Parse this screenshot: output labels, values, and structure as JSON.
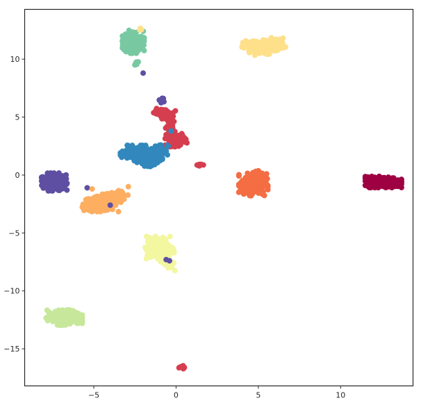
{
  "chart_data": {
    "type": "scatter",
    "title": "",
    "xlabel": "",
    "ylabel": "",
    "xlim": [
      -9.2,
      14.4
    ],
    "ylim": [
      -18.2,
      14.3
    ],
    "xticks": [
      -5,
      0,
      5,
      10
    ],
    "yticks": [
      -15,
      -10,
      -5,
      0,
      5,
      10
    ],
    "xtick_labels": [
      "−5",
      "0",
      "5",
      "10"
    ],
    "ytick_labels": [
      "−15",
      "−10",
      "−5",
      "0",
      "5",
      "10"
    ],
    "grid": false,
    "legend": "none",
    "colors": {
      "crimson": "#9e0142",
      "red": "#d53e4f",
      "orange": "#f46d43",
      "light_orange": "#fdae61",
      "yellow": "#fee08b",
      "pale_yellow": "#f2f7a0",
      "light_green": "#c7e89b",
      "teal": "#78c9a2",
      "blue": "#3288bd",
      "purple": "#5e4fa2"
    },
    "clusters": [
      {
        "color": "purple",
        "center": [
          -7.4,
          -0.6
        ],
        "spread": [
          0.35,
          0.35
        ],
        "n": 260
      },
      {
        "color": "light_orange",
        "center": [
          -4.6,
          -2.5
        ],
        "spread": [
          0.5,
          0.3
        ],
        "n": 180
      },
      {
        "color": "light_orange",
        "center": [
          -3.7,
          -1.9
        ],
        "spread": [
          0.35,
          0.25
        ],
        "n": 80
      },
      {
        "color": "teal",
        "center": [
          -2.6,
          11.5
        ],
        "spread": [
          0.3,
          0.45
        ],
        "n": 220
      },
      {
        "color": "teal",
        "center": [
          -2.4,
          9.6
        ],
        "spread": [
          0.1,
          0.15
        ],
        "n": 8
      },
      {
        "color": "yellow",
        "center": [
          -2.2,
          12.6
        ],
        "spread": [
          0.08,
          0.1
        ],
        "n": 4
      },
      {
        "color": "yellow",
        "center": [
          5.0,
          11.0
        ],
        "spread": [
          0.45,
          0.3
        ],
        "n": 160
      },
      {
        "color": "yellow",
        "center": [
          6.0,
          11.3
        ],
        "spread": [
          0.3,
          0.25
        ],
        "n": 60
      },
      {
        "color": "red",
        "center": [
          -0.7,
          5.3
        ],
        "spread": [
          0.3,
          0.2
        ],
        "n": 60
      },
      {
        "color": "red",
        "center": [
          -0.3,
          4.2
        ],
        "spread": [
          0.15,
          0.3
        ],
        "n": 30
      },
      {
        "color": "red",
        "center": [
          0.0,
          3.1
        ],
        "spread": [
          0.3,
          0.3
        ],
        "n": 80
      },
      {
        "color": "purple",
        "center": [
          -0.8,
          6.5
        ],
        "spread": [
          0.1,
          0.12
        ],
        "n": 8
      },
      {
        "color": "blue",
        "center": [
          -2.5,
          1.9
        ],
        "spread": [
          0.4,
          0.3
        ],
        "n": 160
      },
      {
        "color": "blue",
        "center": [
          -1.6,
          1.5
        ],
        "spread": [
          0.35,
          0.35
        ],
        "n": 120
      },
      {
        "color": "blue",
        "center": [
          -0.9,
          2.2
        ],
        "spread": [
          0.2,
          0.25
        ],
        "n": 40
      },
      {
        "color": "red",
        "center": [
          1.4,
          0.9
        ],
        "spread": [
          0.12,
          0.05
        ],
        "n": 8
      },
      {
        "color": "orange",
        "center": [
          4.7,
          -0.8
        ],
        "spread": [
          0.4,
          0.45
        ],
        "n": 200
      },
      {
        "color": "orange",
        "center": [
          5.0,
          0.1
        ],
        "spread": [
          0.15,
          0.2
        ],
        "n": 20
      },
      {
        "color": "crimson",
        "center": [
          12.6,
          -0.6
        ],
        "spread": [
          0.5,
          0.22
        ],
        "n": 300
      },
      {
        "color": "pale_yellow",
        "center": [
          -1.0,
          -6.4
        ],
        "spread": [
          0.4,
          0.5
        ],
        "n": 160
      },
      {
        "color": "pale_yellow",
        "center": [
          -0.4,
          -7.7
        ],
        "spread": [
          0.15,
          0.25
        ],
        "n": 25
      },
      {
        "color": "light_green",
        "center": [
          -6.8,
          -12.3
        ],
        "spread": [
          0.5,
          0.3
        ],
        "n": 220
      },
      {
        "color": "red",
        "center": [
          0.4,
          -16.6
        ],
        "spread": [
          0.1,
          0.07
        ],
        "n": 8
      }
    ],
    "outliers": [
      {
        "color": "purple",
        "x": -5.4,
        "y": -1.1
      },
      {
        "color": "purple",
        "x": -4.0,
        "y": -2.6
      },
      {
        "color": "purple",
        "x": -2.0,
        "y": 8.8
      },
      {
        "color": "purple",
        "x": -0.4,
        "y": -7.4
      },
      {
        "color": "purple",
        "x": -0.6,
        "y": -7.3
      },
      {
        "color": "blue",
        "x": -0.3,
        "y": 3.8
      },
      {
        "color": "light_orange",
        "x": -5.1,
        "y": -1.2
      },
      {
        "color": "light_orange",
        "x": -2.9,
        "y": -1.0
      }
    ]
  }
}
